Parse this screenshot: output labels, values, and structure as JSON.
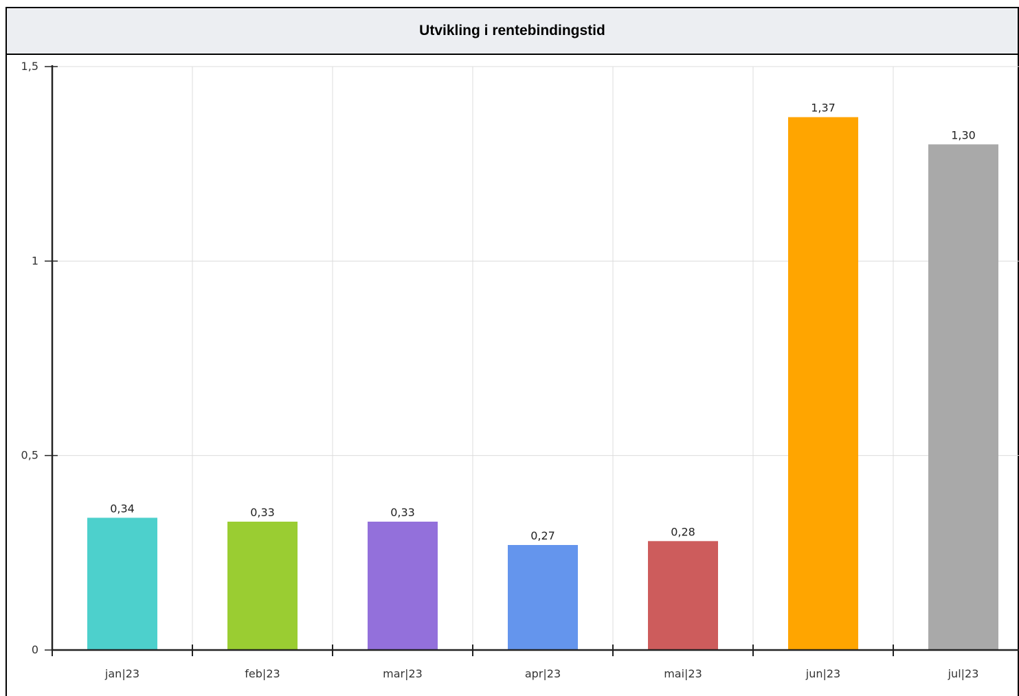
{
  "chart_data": {
    "type": "bar",
    "title": "Utvikling i rentebindingstid",
    "xlabel": "",
    "ylabel": "",
    "categories": [
      "jan|23",
      "feb|23",
      "mar|23",
      "apr|23",
      "mai|23",
      "jun|23",
      "jul|23"
    ],
    "values": [
      0.34,
      0.33,
      0.33,
      0.27,
      0.28,
      1.37,
      1.3
    ],
    "data_labels": [
      "0,34",
      "0,33",
      "0,33",
      "0,27",
      "0,28",
      "1,37",
      "1,30"
    ],
    "colors": [
      "#4dd0cc",
      "#9acd32",
      "#9370db",
      "#6495ed",
      "#cd5c5c",
      "#ffa500",
      "#a9a9a9"
    ],
    "ylim": [
      0,
      1.5
    ],
    "yticks": [
      0,
      0.5,
      1,
      1.5
    ],
    "ytick_labels": [
      "0",
      "0,5",
      "1",
      "1,5"
    ],
    "grid": true,
    "legend": "none"
  }
}
